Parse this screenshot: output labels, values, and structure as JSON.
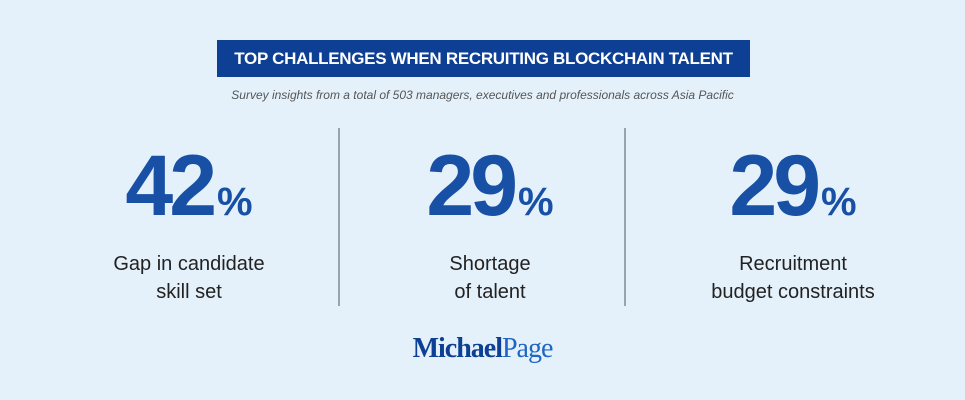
{
  "header": {
    "title": "TOP CHALLENGES WHEN RECRUITING BLOCKCHAIN TALENT",
    "subtitle": "Survey insights from a total of 503 managers, executives and professionals across Asia Pacific"
  },
  "stats": [
    {
      "value": "42",
      "unit": "%",
      "label": [
        "Gap in candidate",
        "skill set"
      ]
    },
    {
      "value": "29",
      "unit": "%",
      "label": [
        "Shortage",
        "of talent"
      ]
    },
    {
      "value": "29",
      "unit": "%",
      "label": [
        "Recruitment",
        "budget constraints"
      ]
    }
  ],
  "logo": {
    "first": "Michael",
    "second": "Page"
  }
}
